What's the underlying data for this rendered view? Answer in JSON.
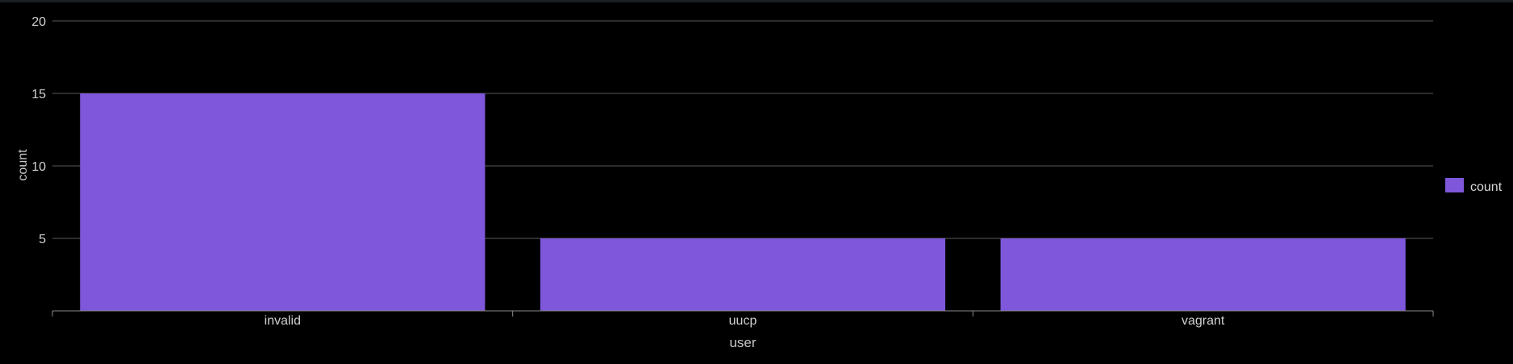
{
  "chart_data": {
    "type": "bar",
    "categories": [
      "invalid",
      "uucp",
      "vagrant"
    ],
    "series": [
      {
        "name": "count",
        "values": [
          15,
          5,
          5
        ],
        "color": "#7e57db"
      }
    ],
    "xlabel": "user",
    "ylabel": "count",
    "ylim": [
      0,
      20
    ],
    "yticks": [
      5,
      10,
      15,
      20
    ],
    "grid": true,
    "legend_position": "right"
  }
}
